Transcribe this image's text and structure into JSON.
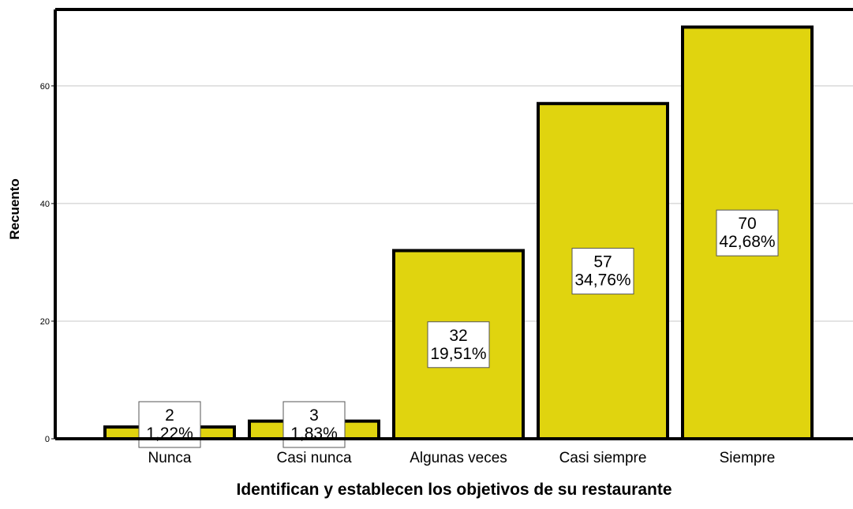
{
  "chart_data": {
    "type": "bar",
    "title": "",
    "xlabel": "Identifican y establecen los objetivos de su restaurante",
    "ylabel": "Recuento",
    "categories": [
      "Nunca",
      "Casi nunca",
      "Algunas veces",
      "Casi siempre",
      "Siempre"
    ],
    "values": [
      2,
      3,
      32,
      57,
      70
    ],
    "data_labels": [
      {
        "count": "2",
        "percent": "1,22%"
      },
      {
        "count": "3",
        "percent": "1,83%"
      },
      {
        "count": "32",
        "percent": "19,51%"
      },
      {
        "count": "57",
        "percent": "34,76%"
      },
      {
        "count": "70",
        "percent": "42,68%"
      }
    ],
    "yticks": [
      0,
      20,
      40,
      60
    ],
    "ylim": [
      0,
      73
    ],
    "grid": true,
    "legend": "none",
    "bar_color": "#e0d40f",
    "bar_edge_color": "#000000"
  }
}
